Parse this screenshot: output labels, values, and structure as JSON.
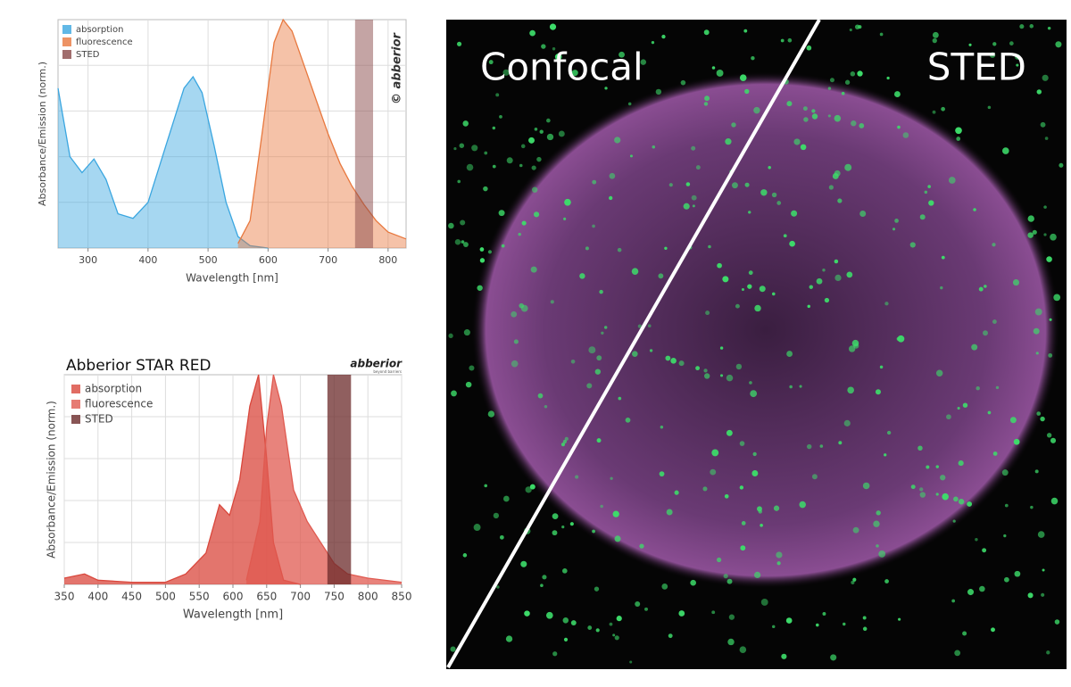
{
  "chart_data": [
    {
      "type": "area",
      "xlabel": "Wavelength [nm]",
      "ylabel": "Absorbance/Emission (norm.)",
      "watermark": "© abberior",
      "xlim": [
        250,
        830
      ],
      "ylim": [
        0,
        1
      ],
      "xticks": [
        300,
        400,
        500,
        600,
        700,
        800
      ],
      "grid": true,
      "legend": "upper left",
      "series": [
        {
          "name": "absorption",
          "color": "#3aa6e0",
          "x": [
            250,
            270,
            290,
            310,
            330,
            350,
            375,
            400,
            430,
            460,
            475,
            490,
            510,
            530,
            550,
            570,
            600
          ],
          "values": [
            0.7,
            0.4,
            0.33,
            0.39,
            0.3,
            0.15,
            0.13,
            0.2,
            0.45,
            0.7,
            0.75,
            0.68,
            0.45,
            0.2,
            0.05,
            0.01,
            0
          ]
        },
        {
          "name": "fluorescence",
          "color": "#e8783e",
          "x": [
            550,
            570,
            590,
            610,
            625,
            640,
            660,
            680,
            700,
            720,
            740,
            760,
            780,
            800,
            830
          ],
          "values": [
            0.02,
            0.12,
            0.5,
            0.9,
            1.0,
            0.95,
            0.8,
            0.65,
            0.5,
            0.37,
            0.27,
            0.19,
            0.12,
            0.07,
            0.04
          ]
        },
        {
          "name": "STED",
          "color": "#8a4a4a",
          "range": [
            745,
            775
          ]
        }
      ]
    },
    {
      "type": "area",
      "title": "Abberior STAR RED",
      "logo": "abberior",
      "logo_tagline": "beyond barriers",
      "xlabel": "Wavelength [nm]",
      "ylabel": "Absorbance/Emission (norm.)",
      "xlim": [
        350,
        850
      ],
      "ylim": [
        0,
        1
      ],
      "xticks": [
        350,
        400,
        450,
        500,
        550,
        600,
        650,
        700,
        750,
        800,
        850
      ],
      "grid": true,
      "legend": "upper left",
      "series": [
        {
          "name": "absorption",
          "color": "#d9473c",
          "x": [
            350,
            380,
            400,
            450,
            500,
            530,
            560,
            580,
            595,
            610,
            625,
            638,
            650,
            660,
            675,
            700
          ],
          "values": [
            0.03,
            0.05,
            0.02,
            0.01,
            0.01,
            0.05,
            0.15,
            0.38,
            0.33,
            0.5,
            0.85,
            1.0,
            0.6,
            0.2,
            0.02,
            0
          ]
        },
        {
          "name": "fluorescence",
          "color": "#e05a50",
          "x": [
            620,
            640,
            650,
            660,
            672,
            690,
            710,
            730,
            750,
            770,
            800,
            850
          ],
          "values": [
            0.02,
            0.3,
            0.75,
            1.0,
            0.85,
            0.45,
            0.3,
            0.2,
            0.1,
            0.05,
            0.03,
            0.01
          ]
        },
        {
          "name": "STED",
          "color": "#6b2a2a",
          "range": [
            740,
            775
          ]
        }
      ]
    }
  ],
  "micrograph": {
    "left_label": "Confocal",
    "right_label": "STED"
  }
}
